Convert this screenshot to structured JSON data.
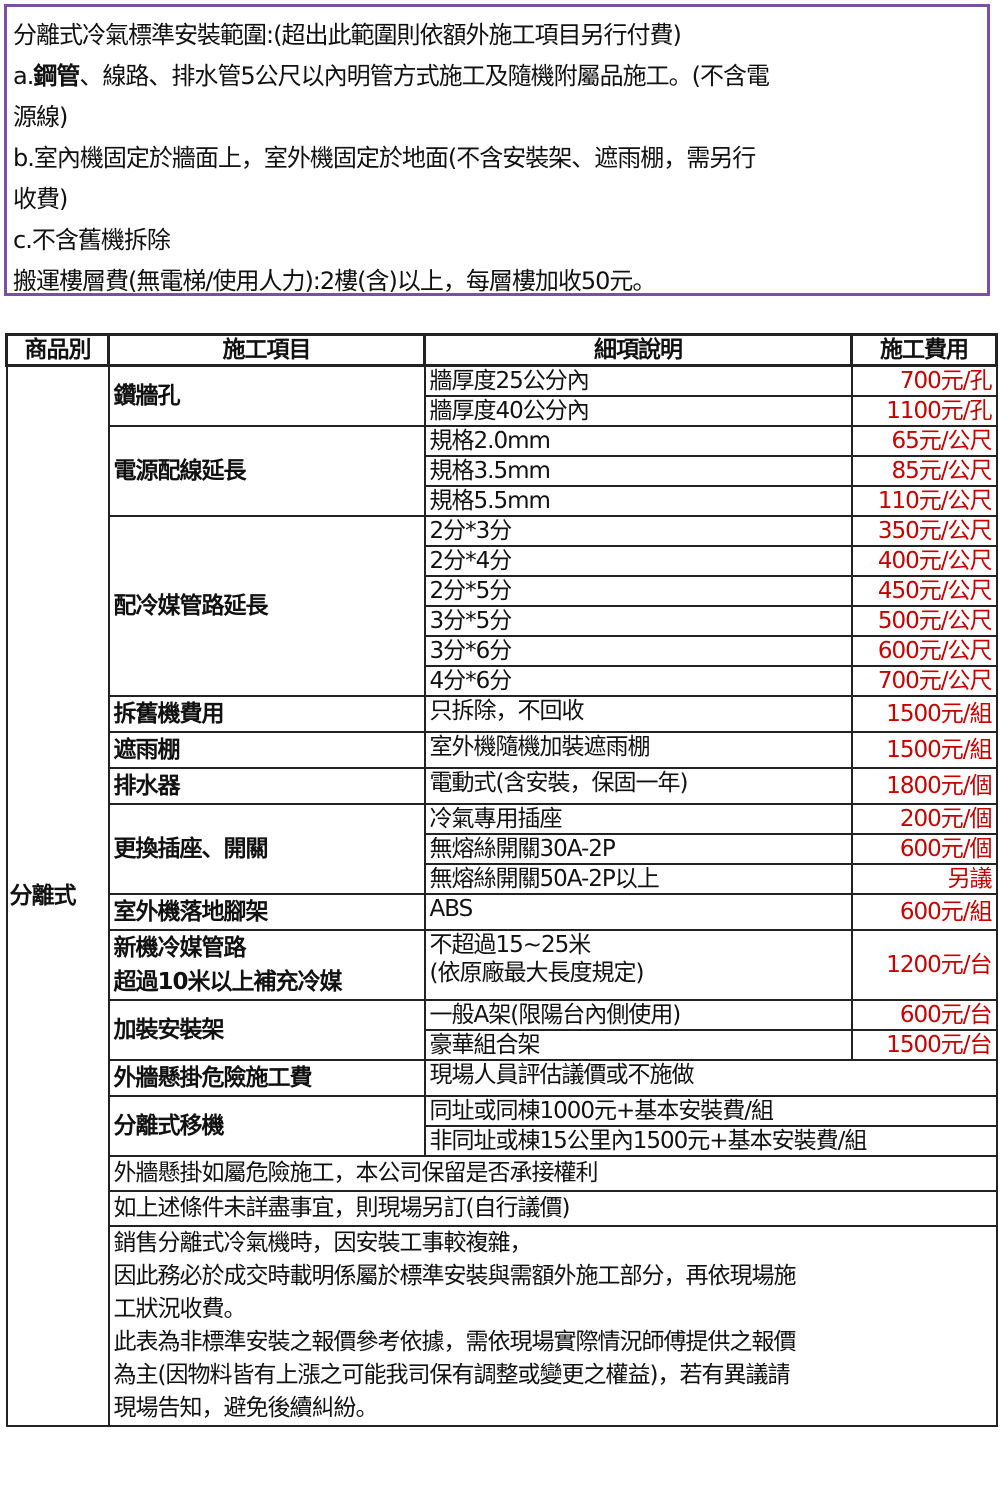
{
  "intro": {
    "lines": [
      "分離式冷氣標準安裝範圍:(超出此範圍則依額外施工項目另行付費)",
      "a.",
      "鋼管",
      "、線路、排水管5公尺以內明管方式施工及隨機附屬品施工。(不含電",
      "源線)",
      "b.室內機固定於牆面上，室外機固定於地面(不含安裝架、遮雨棚，需另行",
      "收費)",
      "c.不含舊機拆除",
      "搬運樓層費(無電梯/使用人力):2樓(含)以上，每層樓加收50元。"
    ]
  },
  "table": {
    "headers": [
      "商品別",
      "施工項目",
      "細項說明",
      "施工費用"
    ],
    "category": "分離式",
    "groups": [
      {
        "item": "鑽牆孔",
        "rows": [
          [
            "牆厚度25公分內",
            "700元/孔"
          ],
          [
            "牆厚度40公分內",
            "1100元/孔"
          ]
        ]
      },
      {
        "item": "電源配線延長",
        "rows": [
          [
            "規格2.0mm",
            "65元/公尺"
          ],
          [
            "規格3.5mm",
            "85元/公尺"
          ],
          [
            "規格5.5mm",
            "110元/公尺"
          ]
        ]
      },
      {
        "item": "配冷媒管路延長",
        "rows": [
          [
            "2分*3分",
            "350元/公尺"
          ],
          [
            "2分*4分",
            "400元/公尺"
          ],
          [
            "2分*5分",
            "450元/公尺"
          ],
          [
            "3分*5分",
            "500元/公尺"
          ],
          [
            "3分*6分",
            "600元/公尺"
          ],
          [
            "4分*6分",
            "700元/公尺"
          ]
        ]
      },
      {
        "item": "拆舊機費用",
        "rows": [
          [
            "只拆除，不回收",
            "1500元/組"
          ]
        ]
      },
      {
        "item": "遮雨棚",
        "rows": [
          [
            "室外機隨機加裝遮雨棚",
            "1500元/組"
          ]
        ]
      },
      {
        "item": "排水器",
        "rows": [
          [
            "電動式(含安裝，保固一年)",
            "1800元/個"
          ]
        ]
      },
      {
        "item": "更換插座、開關",
        "rows": [
          [
            "冷氣專用插座",
            "200元/個"
          ],
          [
            "無熔絲開關30A-2P",
            "600元/個"
          ],
          [
            "無熔絲開關50A-2P以上",
            "另議"
          ]
        ]
      },
      {
        "item": "室外機落地腳架",
        "rows": [
          [
            "ABS",
            "600元/組"
          ]
        ]
      },
      {
        "item": "新機冷媒管路\n超過10米以上補充冷媒",
        "tall": true,
        "rows": [
          [
            "不超過15~25米\n(依原廠最大長度規定)",
            "1200元/台"
          ]
        ]
      },
      {
        "item": "加裝安裝架",
        "rows": [
          [
            "一般A架(限陽台內側使用)",
            "600元/台"
          ],
          [
            "豪華組合架",
            "1500元/台"
          ]
        ]
      },
      {
        "item": "外牆懸掛危險施工費",
        "rows": [
          [
            "現場人員評估議價或不施做"
          ]
        ]
      },
      {
        "item": "分離式移機",
        "rows": [
          [
            "同址或同棟1000元+基本安裝費/組"
          ],
          [
            "非同址或棟15公里內1500元+基本安裝費/組"
          ]
        ]
      }
    ],
    "notes": [
      "外牆懸掛如屬危險施工，本公司保留是否承接權利",
      "如上述條件未詳盡事宜，則現場另訂(自行議價)",
      "銷售分離式冷氣機時，因安裝工事較複雜，\n因此務必於成交時載明係屬於標準安裝與需額外施工部分，再依現場施\n工狀況收費。\n此表為非標準安裝之報價參考依據，需依現場實際情況師傅提供之報價\n為主(因物料皆有上漲之可能我司保有調整或變更之權益)，若有異議請\n現場告知，避免後續糾紛。"
    ],
    "fee_color": "#c40000",
    "frame_color": "#7a4fa6"
  }
}
